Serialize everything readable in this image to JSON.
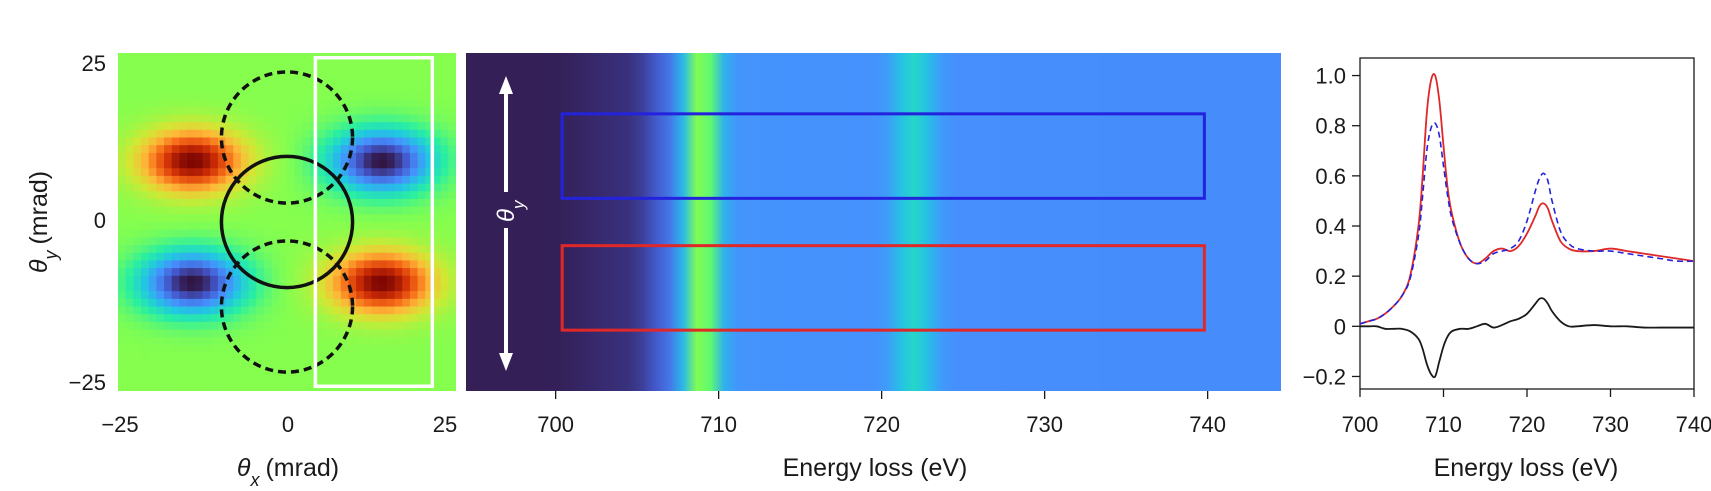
{
  "chart_data": [
    {
      "type": "heatmap",
      "title": "",
      "xlabel": {
        "symbol": "θ",
        "sub": "x",
        "unit": "(mrad)"
      },
      "ylabel": {
        "symbol": "θ",
        "sub": "y",
        "unit": "(mrad)"
      },
      "xlim": [
        -25,
        25
      ],
      "ylim": [
        -25,
        25
      ],
      "x_ticks": [
        -25,
        0,
        25
      ],
      "y_ticks": [
        25,
        0,
        -25
      ],
      "lobes": [
        {
          "x": -14,
          "y": 9,
          "sign": "positive"
        },
        {
          "x": 14,
          "y": -9,
          "sign": "positive"
        },
        {
          "x": 14,
          "y": 9,
          "sign": "negative"
        },
        {
          "x": -14,
          "y": -9,
          "sign": "negative"
        }
      ],
      "annotations": {
        "circles": [
          {
            "x": 0,
            "y": 0,
            "r": 9.7,
            "style": "solid"
          },
          {
            "x": 0,
            "y": 12.5,
            "r": 9.7,
            "style": "dashed"
          },
          {
            "x": 0,
            "y": -12.5,
            "r": 9.7,
            "style": "dashed"
          }
        ],
        "rectangle": {
          "x": [
            4.2,
            21.5
          ],
          "y": [
            -24.3,
            24.3
          ],
          "color": "#ffffff"
        }
      }
    },
    {
      "type": "heatmap",
      "title": "",
      "xlabel": "Energy loss (eV)",
      "xlim": [
        694.5,
        744.5
      ],
      "x_ticks": [
        700,
        710,
        720,
        730,
        740
      ],
      "peaks_eV": [
        709,
        722
      ],
      "arrow_label": {
        "symbol": "θ",
        "sub": "y"
      },
      "boxes": [
        {
          "color": "#2323dd",
          "x": [
            700.4,
            739.8
          ],
          "y_fraction": [
            0.18,
            0.43
          ]
        },
        {
          "color": "#e02828",
          "x": [
            700.4,
            739.8
          ],
          "y_fraction": [
            0.57,
            0.82
          ]
        }
      ]
    },
    {
      "type": "line",
      "title": "",
      "xlabel": "Energy loss (eV)",
      "ylabel": "",
      "xlim": [
        700,
        740
      ],
      "ylim": [
        -0.25,
        1.07
      ],
      "x_ticks": [
        700,
        710,
        720,
        730,
        740
      ],
      "y_ticks": [
        -0.2,
        0,
        0.2,
        0.4,
        0.6,
        0.8,
        1.0
      ],
      "y_tick_labels": [
        "−0.2",
        "0",
        "0.2",
        "0.4",
        "0.6",
        "0.8",
        "1.0"
      ],
      "x": [
        700,
        701,
        702,
        703,
        704,
        705,
        706,
        707,
        707.5,
        708,
        708.5,
        709,
        709.5,
        710,
        710.5,
        711,
        712,
        713,
        714,
        715,
        716,
        717,
        718,
        719,
        720,
        721,
        721.5,
        722,
        722.5,
        723,
        724,
        725,
        726,
        728,
        730,
        732,
        734,
        736,
        738,
        740
      ],
      "series": [
        {
          "name": "red",
          "color": "#e02828",
          "style": "solid",
          "values": [
            0.01,
            0.02,
            0.03,
            0.05,
            0.08,
            0.12,
            0.2,
            0.4,
            0.6,
            0.85,
            0.98,
            1.0,
            0.9,
            0.72,
            0.55,
            0.45,
            0.33,
            0.27,
            0.25,
            0.27,
            0.3,
            0.31,
            0.3,
            0.32,
            0.37,
            0.44,
            0.48,
            0.49,
            0.47,
            0.42,
            0.34,
            0.31,
            0.3,
            0.3,
            0.31,
            0.3,
            0.29,
            0.28,
            0.27,
            0.26
          ]
        },
        {
          "name": "blue",
          "color": "#2323dd",
          "style": "dashed",
          "values": [
            0.01,
            0.02,
            0.03,
            0.05,
            0.08,
            0.12,
            0.19,
            0.36,
            0.52,
            0.7,
            0.79,
            0.81,
            0.76,
            0.64,
            0.52,
            0.43,
            0.33,
            0.27,
            0.25,
            0.26,
            0.29,
            0.3,
            0.31,
            0.34,
            0.42,
            0.54,
            0.59,
            0.61,
            0.58,
            0.5,
            0.38,
            0.33,
            0.31,
            0.3,
            0.3,
            0.29,
            0.28,
            0.27,
            0.26,
            0.26
          ]
        },
        {
          "name": "difference",
          "color": "#1a1a1a",
          "style": "solid",
          "values": [
            0,
            0,
            0,
            -0.01,
            -0.01,
            -0.01,
            -0.02,
            -0.05,
            -0.09,
            -0.15,
            -0.19,
            -0.2,
            -0.14,
            -0.08,
            -0.04,
            -0.02,
            -0.01,
            -0.01,
            0,
            0.01,
            -0.005,
            0.005,
            0.02,
            0.03,
            0.05,
            0.09,
            0.11,
            0.11,
            0.09,
            0.06,
            0.02,
            0.0,
            0.0,
            0.005,
            0.0,
            0.0,
            -0.005,
            -0.005,
            -0.005,
            -0.005
          ]
        }
      ]
    }
  ]
}
